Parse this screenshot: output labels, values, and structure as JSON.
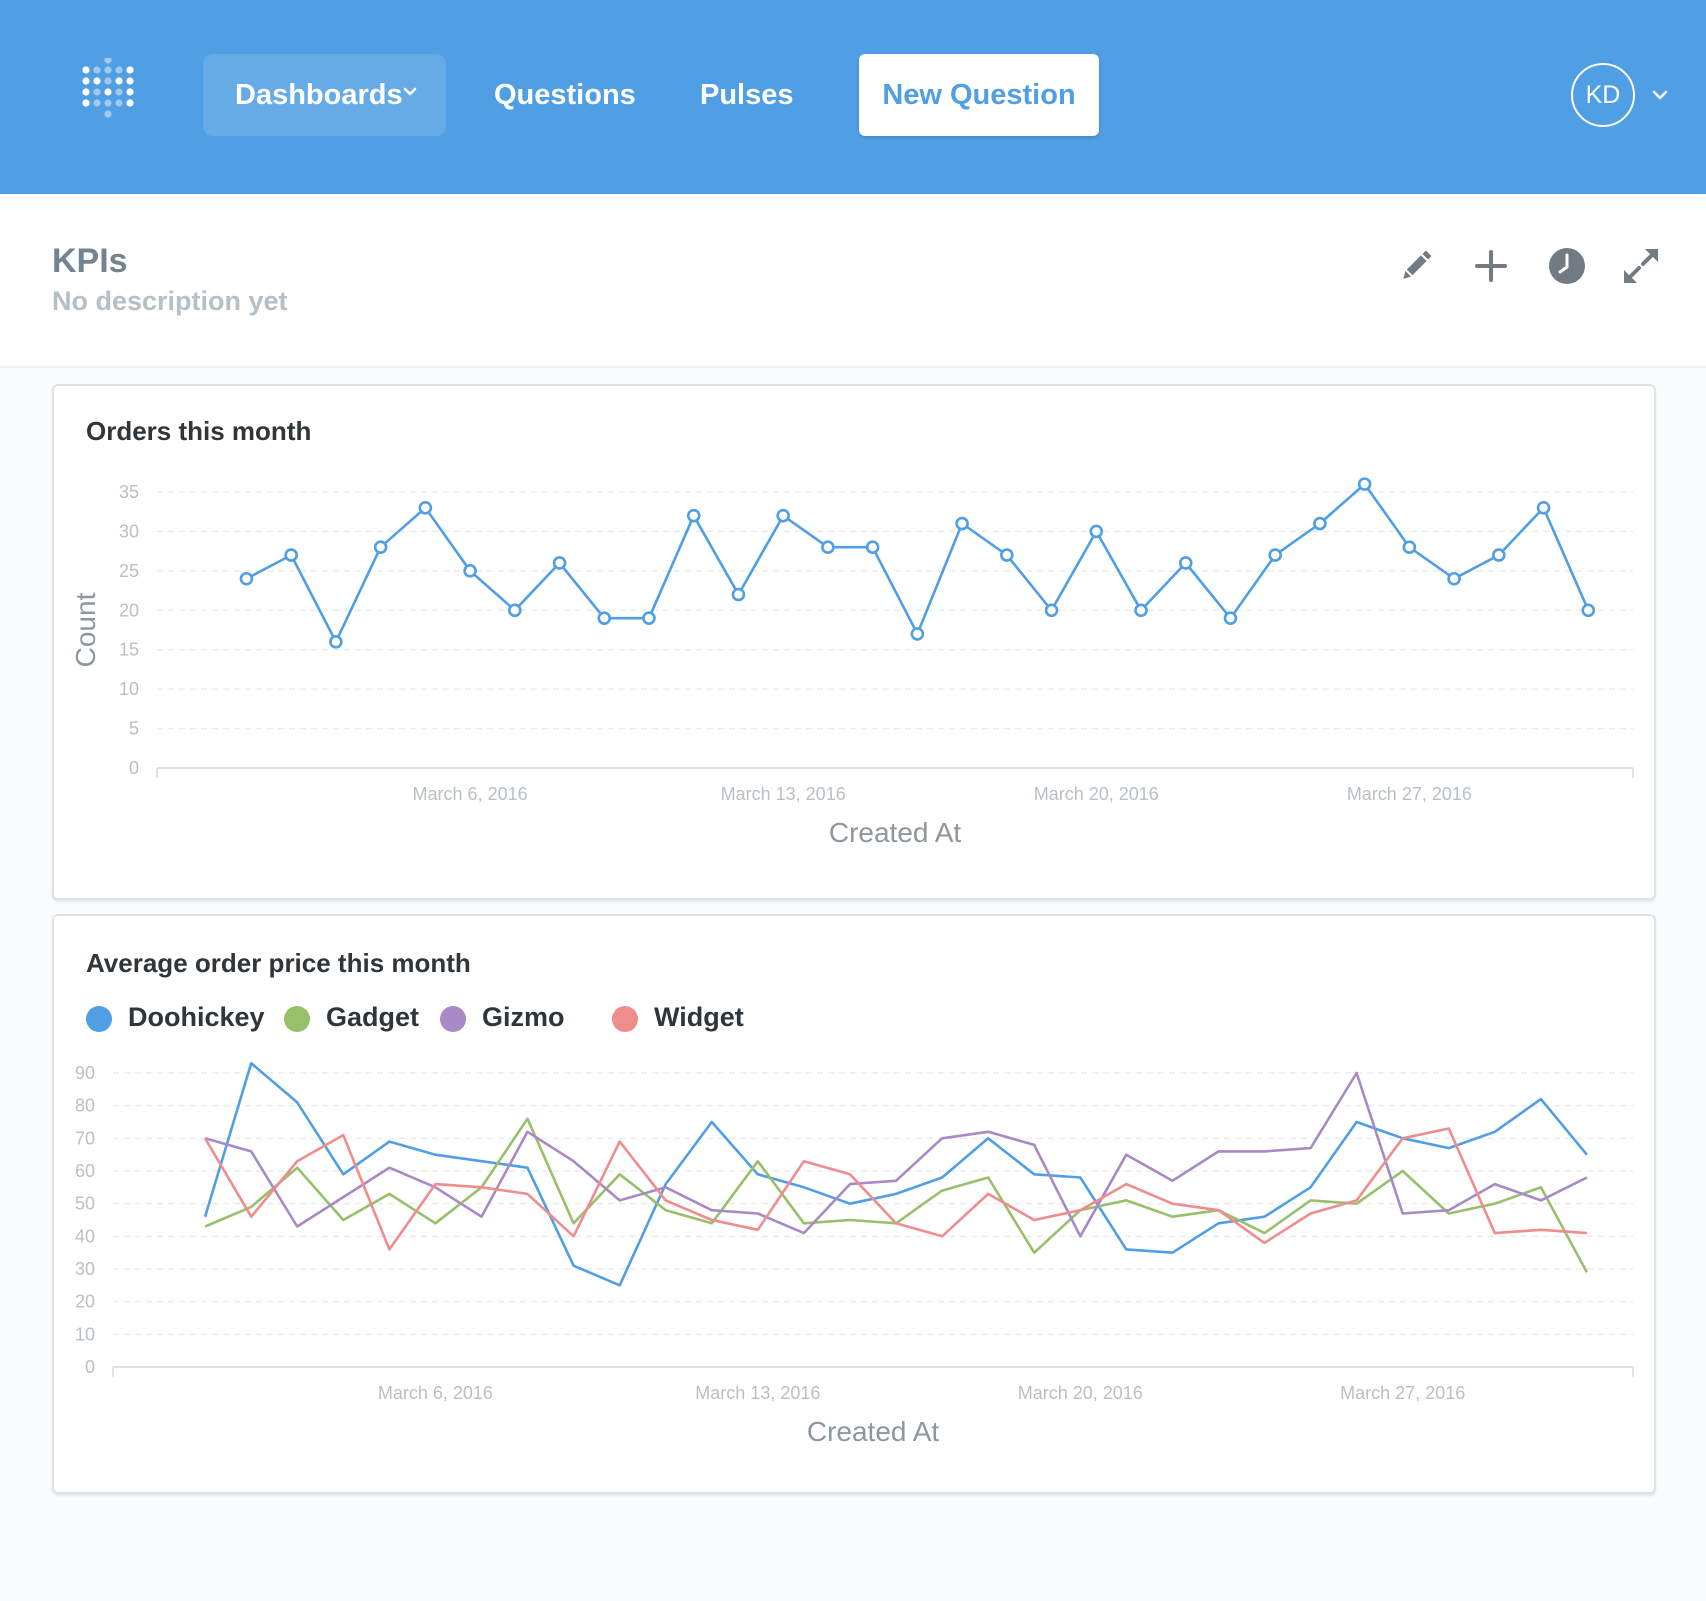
{
  "nav": {
    "dashboards_label": "Dashboards",
    "questions_label": "Questions",
    "pulses_label": "Pulses",
    "new_question_label": "New Question",
    "avatar_initials": "KD"
  },
  "dashboard": {
    "title": "KPIs",
    "description": "No description yet",
    "tools": [
      "pencil-icon",
      "plus-icon",
      "clock-icon",
      "expand-icon"
    ]
  },
  "colors": {
    "brand": "#509ee3",
    "Doohickey": "#509ee3",
    "Gadget": "#98c06a",
    "Gizmo": "#a989c5",
    "Widget": "#ef8c8c"
  },
  "chart_data": [
    {
      "type": "line",
      "title": "Orders this month",
      "xlabel": "Created At",
      "ylabel": "Count",
      "ylim": [
        0,
        35
      ],
      "yticks": [
        0,
        5,
        10,
        15,
        20,
        25,
        30,
        35
      ],
      "xlim": [
        "2016-02-28",
        "2016-04-01"
      ],
      "xtick_dates": [
        "2016-03-06",
        "2016-03-13",
        "2016-03-20",
        "2016-03-27"
      ],
      "xtick_labels": [
        "March 6, 2016",
        "March 13, 2016",
        "March 20, 2016",
        "March 27, 2016"
      ],
      "x": [
        "2016-03-01",
        "2016-03-02",
        "2016-03-03",
        "2016-03-04",
        "2016-03-05",
        "2016-03-06",
        "2016-03-07",
        "2016-03-08",
        "2016-03-09",
        "2016-03-10",
        "2016-03-11",
        "2016-03-12",
        "2016-03-13",
        "2016-03-14",
        "2016-03-15",
        "2016-03-16",
        "2016-03-17",
        "2016-03-18",
        "2016-03-19",
        "2016-03-20",
        "2016-03-21",
        "2016-03-22",
        "2016-03-23",
        "2016-03-24",
        "2016-03-25",
        "2016-03-26",
        "2016-03-27",
        "2016-03-28",
        "2016-03-29",
        "2016-03-30",
        "2016-03-31"
      ],
      "series": [
        {
          "values": [
            24,
            27,
            16,
            28,
            33,
            25,
            20,
            26,
            19,
            19,
            32,
            22,
            32,
            28,
            28,
            17,
            31,
            27,
            20,
            30,
            20,
            26,
            19,
            27,
            31,
            36,
            28,
            24,
            27,
            33,
            20
          ]
        }
      ],
      "grid": true,
      "markers": true
    },
    {
      "type": "line",
      "title": "Average order price this month",
      "xlabel": "Created At",
      "ylabel": "",
      "ylim": [
        0,
        90
      ],
      "yticks": [
        0,
        10,
        20,
        30,
        40,
        50,
        60,
        70,
        80,
        90
      ],
      "xlim": [
        "2016-02-28",
        "2016-04-01"
      ],
      "xtick_dates": [
        "2016-03-06",
        "2016-03-13",
        "2016-03-20",
        "2016-03-27"
      ],
      "xtick_labels": [
        "March 6, 2016",
        "March 13, 2016",
        "March 20, 2016",
        "March 27, 2016"
      ],
      "legend_position": "top-left",
      "x": [
        "2016-03-01",
        "2016-03-02",
        "2016-03-03",
        "2016-03-04",
        "2016-03-05",
        "2016-03-06",
        "2016-03-07",
        "2016-03-08",
        "2016-03-09",
        "2016-03-10",
        "2016-03-11",
        "2016-03-12",
        "2016-03-13",
        "2016-03-14",
        "2016-03-15",
        "2016-03-16",
        "2016-03-17",
        "2016-03-18",
        "2016-03-19",
        "2016-03-20",
        "2016-03-21",
        "2016-03-22",
        "2016-03-23",
        "2016-03-24",
        "2016-03-25",
        "2016-03-26",
        "2016-03-27",
        "2016-03-28",
        "2016-03-29",
        "2016-03-30",
        "2016-03-31"
      ],
      "series": [
        {
          "name": "Doohickey",
          "values": [
            46,
            93,
            81,
            59,
            69,
            65,
            63,
            61,
            31,
            25,
            56,
            75,
            59,
            55,
            50,
            53,
            58,
            70,
            59,
            58,
            36,
            35,
            44,
            46,
            55,
            75,
            70,
            67,
            72,
            82,
            65
          ]
        },
        {
          "name": "Gadget",
          "values": [
            43,
            49,
            61,
            45,
            53,
            44,
            55,
            76,
            44,
            59,
            48,
            44,
            63,
            44,
            45,
            44,
            54,
            58,
            35,
            48,
            51,
            46,
            48,
            41,
            51,
            50,
            60,
            47,
            50,
            55,
            29
          ]
        },
        {
          "name": "Gizmo",
          "values": [
            70,
            66,
            43,
            52,
            61,
            55,
            46,
            72,
            63,
            51,
            55,
            48,
            47,
            41,
            56,
            57,
            70,
            72,
            68,
            40,
            65,
            57,
            66,
            66,
            67,
            90,
            47,
            48,
            56,
            51,
            58
          ]
        },
        {
          "name": "Widget",
          "values": [
            70,
            46,
            63,
            71,
            36,
            56,
            55,
            53,
            40,
            69,
            51,
            45,
            42,
            63,
            59,
            44,
            40,
            53,
            45,
            48,
            56,
            50,
            48,
            38,
            47,
            51,
            70,
            73,
            41,
            42,
            41
          ]
        }
      ],
      "grid": true,
      "markers": false
    }
  ]
}
